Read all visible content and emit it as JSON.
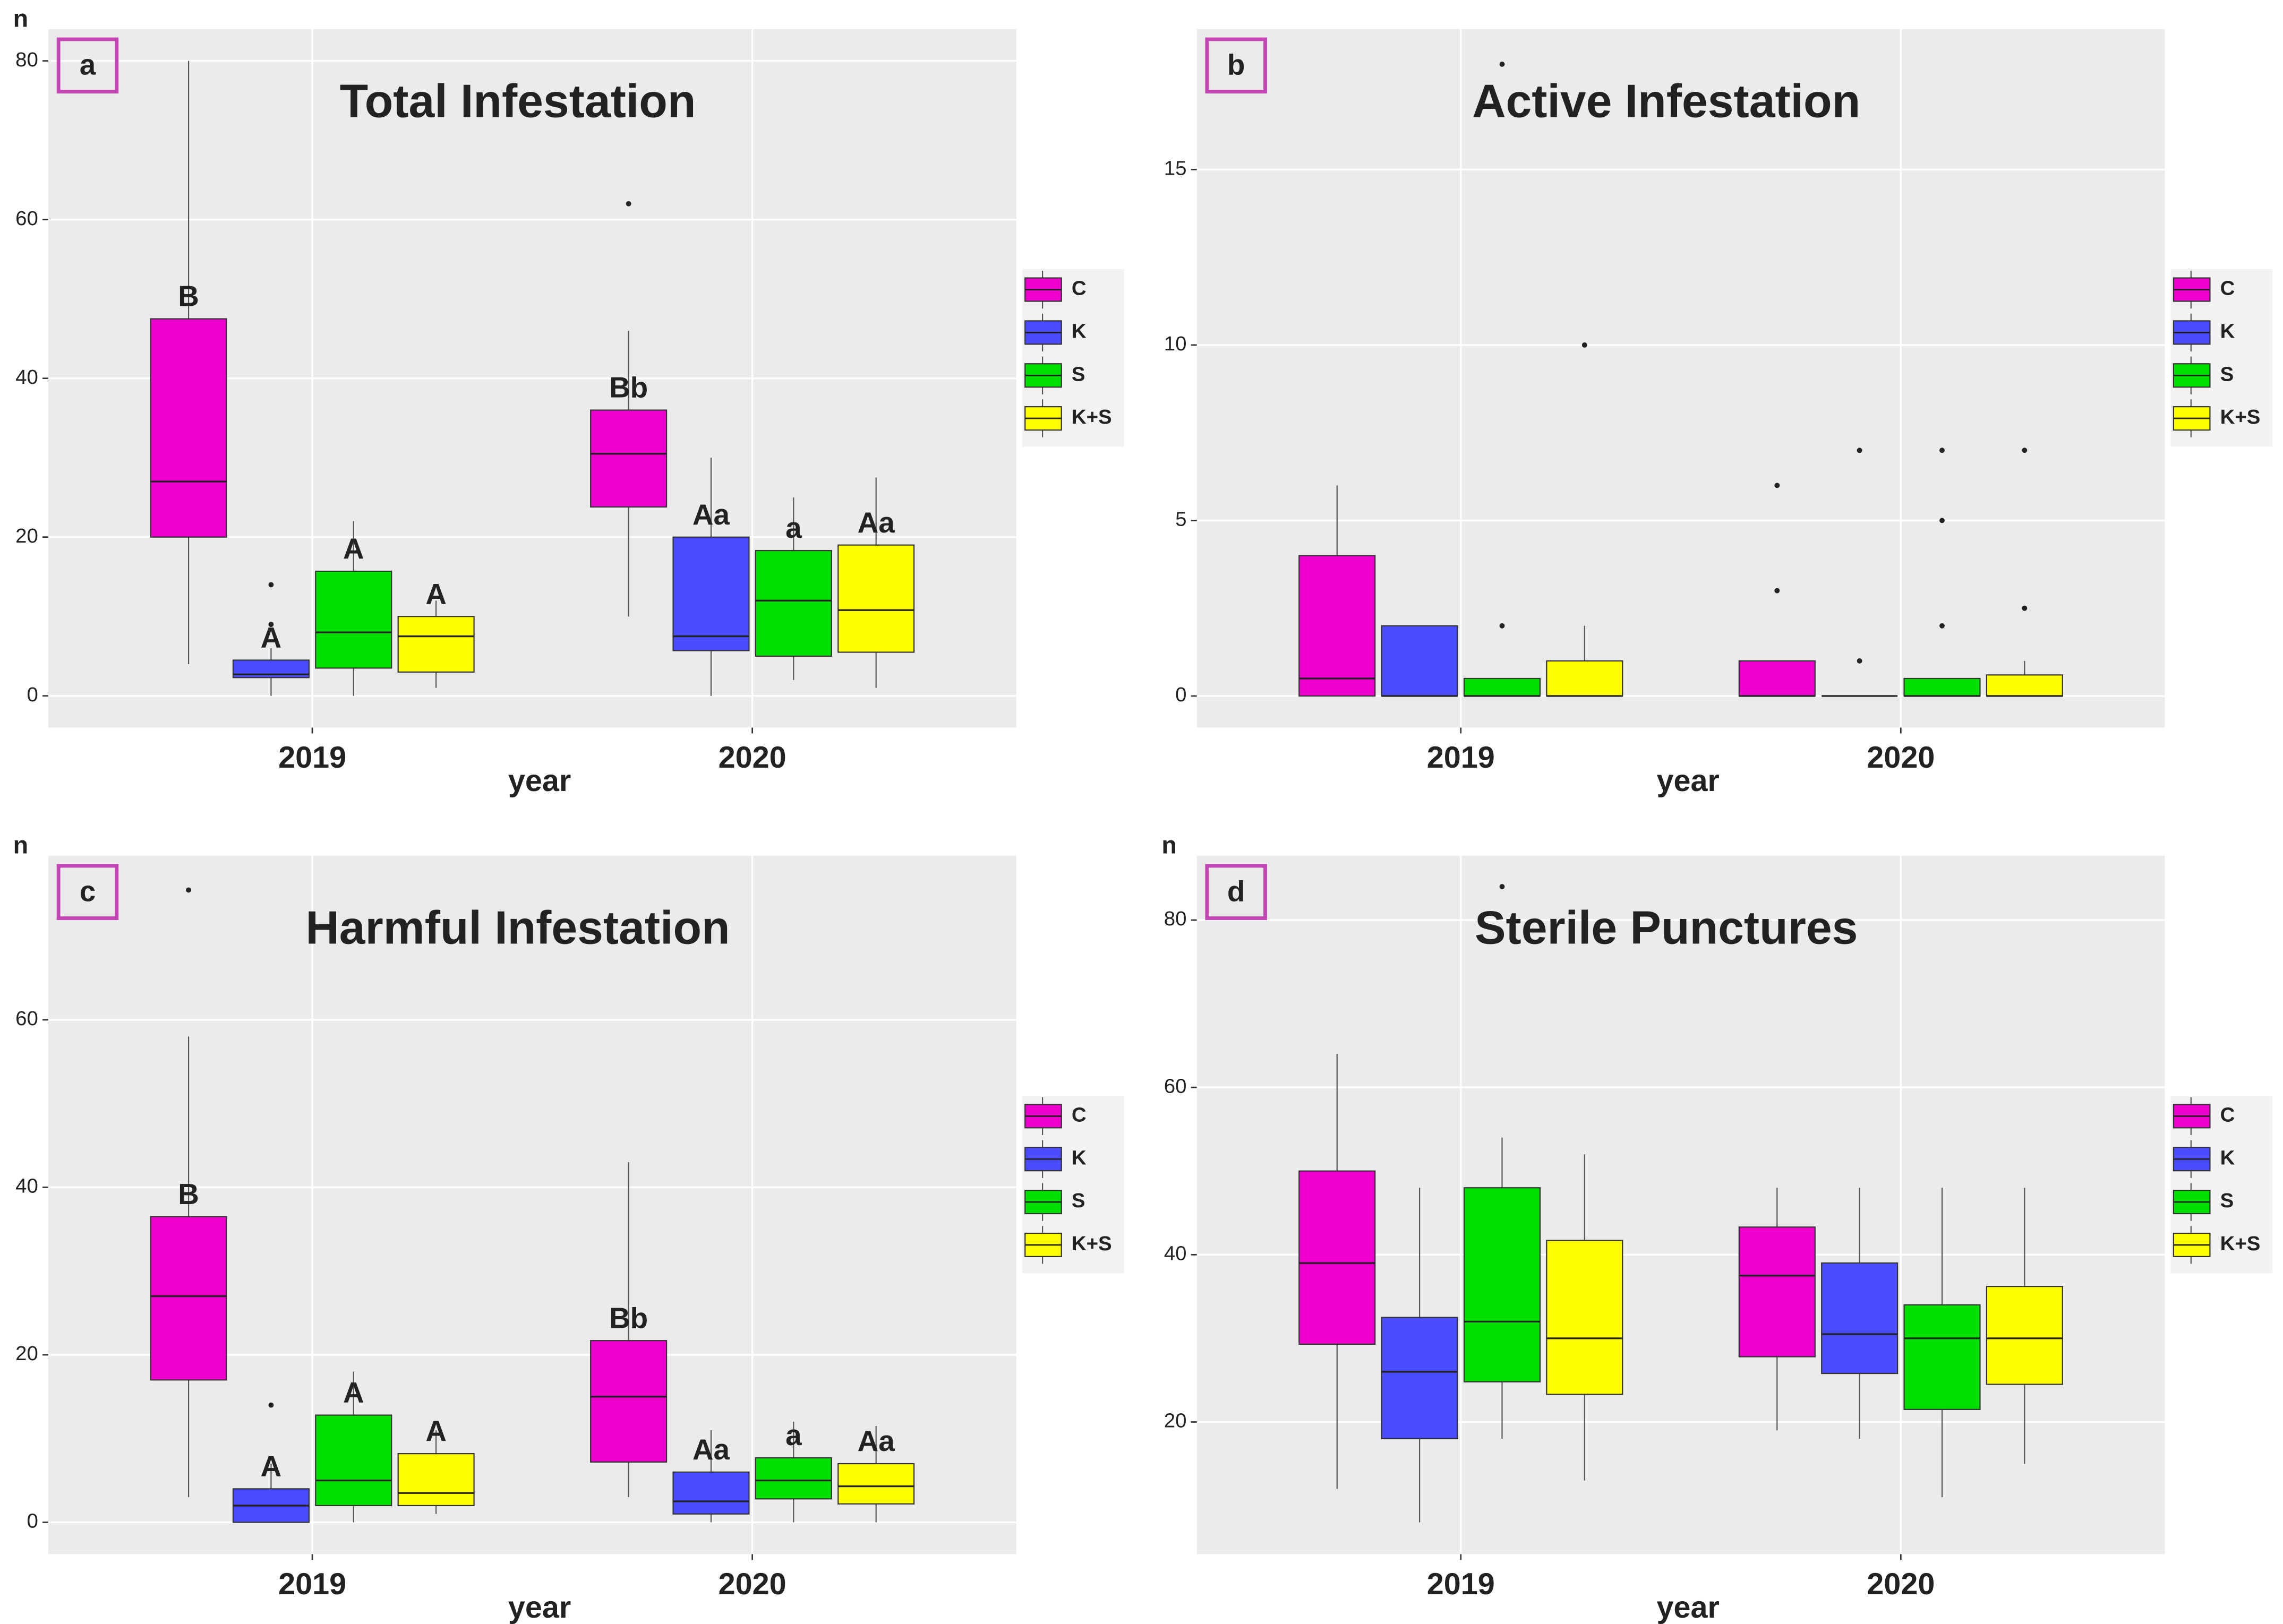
{
  "chart_data": [
    {
      "type": "box",
      "panel_label": "a",
      "title": "Total Infestation",
      "y_label": "n",
      "x_label": "year",
      "categories": [
        "2019",
        "2020"
      ],
      "ylim": [
        -4,
        84
      ],
      "yticks": [
        0,
        20,
        40,
        60,
        80
      ],
      "grid": true,
      "series": [
        {
          "name": "C",
          "color": "#ee00cc",
          "letters": [
            "B",
            "Bb"
          ],
          "boxes": [
            {
              "min": 4,
              "q1": 20,
              "median": 27,
              "q3": 47.5,
              "max": 80,
              "outliers": []
            },
            {
              "min": 10,
              "q1": 23.8,
              "median": 30.5,
              "q3": 36,
              "max": 46,
              "outliers": [
                62
              ]
            }
          ]
        },
        {
          "name": "K",
          "color": "#4b4bff",
          "letters": [
            "A",
            "Aa"
          ],
          "boxes": [
            {
              "min": 0,
              "q1": 2.3,
              "median": 2.7,
              "q3": 4.5,
              "max": 6,
              "outliers": [
                9,
                14
              ]
            },
            {
              "min": 0,
              "q1": 5.7,
              "median": 7.5,
              "q3": 20,
              "max": 30,
              "outliers": []
            }
          ]
        },
        {
          "name": "S",
          "color": "#00e000",
          "letters": [
            "A",
            "a"
          ],
          "boxes": [
            {
              "min": 0,
              "q1": 3.5,
              "median": 8,
              "q3": 15.7,
              "max": 22,
              "outliers": []
            },
            {
              "min": 2,
              "q1": 5,
              "median": 12,
              "q3": 18.3,
              "max": 25,
              "outliers": []
            }
          ]
        },
        {
          "name": "K+S",
          "color": "#ffff00",
          "letters": [
            "A",
            "Aa"
          ],
          "boxes": [
            {
              "min": 1,
              "q1": 3,
              "median": 7.5,
              "q3": 10,
              "max": 12,
              "outliers": []
            },
            {
              "min": 1,
              "q1": 5.5,
              "median": 10.8,
              "q3": 19,
              "max": 27.5,
              "outliers": []
            }
          ]
        }
      ]
    },
    {
      "type": "box",
      "panel_label": "b",
      "title": "Active Infestation",
      "x_label": "year",
      "categories": [
        "2019",
        "2020"
      ],
      "ylim": [
        -0.9,
        19
      ],
      "yticks": [
        0,
        5,
        10,
        15
      ],
      "grid": true,
      "series": [
        {
          "name": "C",
          "color": "#ee00cc",
          "boxes": [
            {
              "min": 0,
              "q1": 0,
              "median": 0.5,
              "q3": 4,
              "max": 6,
              "outliers": []
            },
            {
              "min": 0,
              "q1": 0,
              "median": 0,
              "q3": 1,
              "max": 1,
              "outliers": [
                3,
                6
              ]
            }
          ]
        },
        {
          "name": "K",
          "color": "#4b4bff",
          "boxes": [
            {
              "min": 0,
              "q1": 0,
              "median": 0,
              "q3": 2,
              "max": 2,
              "outliers": []
            },
            {
              "min": 0,
              "q1": 0,
              "median": 0,
              "q3": 0,
              "max": 0,
              "outliers": [
                1,
                7
              ]
            }
          ]
        },
        {
          "name": "S",
          "color": "#00e000",
          "boxes": [
            {
              "min": 0,
              "q1": 0,
              "median": 0,
              "q3": 0.5,
              "max": 0.5,
              "outliers": [
                2,
                18
              ]
            },
            {
              "min": 0,
              "q1": 0,
              "median": 0,
              "q3": 0.5,
              "max": 0.5,
              "outliers": [
                2,
                5,
                7
              ]
            }
          ]
        },
        {
          "name": "K+S",
          "color": "#ffff00",
          "boxes": [
            {
              "min": 0,
              "q1": 0,
              "median": 0,
              "q3": 1,
              "max": 2,
              "outliers": [
                10
              ]
            },
            {
              "min": 0,
              "q1": 0,
              "median": 0,
              "q3": 0.6,
              "max": 1,
              "outliers": [
                2.5,
                7
              ]
            }
          ]
        }
      ]
    },
    {
      "type": "box",
      "panel_label": "c",
      "title": "Harmful Infestation",
      "y_label": "n",
      "x_label": "year",
      "categories": [
        "2019",
        "2020"
      ],
      "ylim": [
        -3.8,
        79.6
      ],
      "yticks": [
        0,
        20,
        40,
        60
      ],
      "grid": true,
      "series": [
        {
          "name": "C",
          "color": "#ee00cc",
          "letters": [
            "B",
            "Bb"
          ],
          "boxes": [
            {
              "min": 3,
              "q1": 17,
              "median": 27,
              "q3": 36.5,
              "max": 58,
              "outliers": [
                75.5
              ]
            },
            {
              "min": 3,
              "q1": 7.2,
              "median": 15,
              "q3": 21.7,
              "max": 43,
              "outliers": []
            }
          ]
        },
        {
          "name": "K",
          "color": "#4b4bff",
          "letters": [
            "A",
            "Aa"
          ],
          "boxes": [
            {
              "min": 0,
              "q1": 0,
              "median": 2,
              "q3": 4,
              "max": 7,
              "outliers": [
                14
              ]
            },
            {
              "min": 0,
              "q1": 1,
              "median": 2.5,
              "q3": 6,
              "max": 11,
              "outliers": []
            }
          ]
        },
        {
          "name": "S",
          "color": "#00e000",
          "letters": [
            "A",
            "a"
          ],
          "boxes": [
            {
              "min": 0,
              "q1": 2,
              "median": 5,
              "q3": 12.8,
              "max": 18,
              "outliers": []
            },
            {
              "min": 0,
              "q1": 2.8,
              "median": 5,
              "q3": 7.7,
              "max": 12,
              "outliers": []
            }
          ]
        },
        {
          "name": "K+S",
          "color": "#ffff00",
          "letters": [
            "A",
            "Aa"
          ],
          "boxes": [
            {
              "min": 1,
              "q1": 2,
              "median": 3.5,
              "q3": 8.2,
              "max": 11,
              "outliers": []
            },
            {
              "min": 0,
              "q1": 2.2,
              "median": 4.3,
              "q3": 7,
              "max": 11.5,
              "outliers": []
            }
          ]
        }
      ]
    },
    {
      "type": "box",
      "panel_label": "d",
      "title": "Sterile Punctures",
      "y_label": "n",
      "x_label": "year",
      "categories": [
        "2019",
        "2020"
      ],
      "ylim": [
        4.2,
        87.7
      ],
      "yticks": [
        20,
        40,
        60,
        80
      ],
      "grid": true,
      "series": [
        {
          "name": "C",
          "color": "#ee00cc",
          "boxes": [
            {
              "min": 12,
              "q1": 29.3,
              "median": 39,
              "q3": 50,
              "max": 64,
              "outliers": []
            },
            {
              "min": 19,
              "q1": 27.8,
              "median": 37.5,
              "q3": 43.3,
              "max": 48,
              "outliers": []
            }
          ]
        },
        {
          "name": "K",
          "color": "#4b4bff",
          "boxes": [
            {
              "min": 8,
              "q1": 18,
              "median": 26,
              "q3": 32.5,
              "max": 48,
              "outliers": []
            },
            {
              "min": 18,
              "q1": 25.8,
              "median": 30.5,
              "q3": 39,
              "max": 48,
              "outliers": []
            }
          ]
        },
        {
          "name": "S",
          "color": "#00e000",
          "boxes": [
            {
              "min": 18,
              "q1": 24.8,
              "median": 32,
              "q3": 48,
              "max": 54,
              "outliers": [
                84
              ]
            },
            {
              "min": 11,
              "q1": 21.5,
              "median": 30,
              "q3": 34,
              "max": 48,
              "outliers": []
            }
          ]
        },
        {
          "name": "K+S",
          "color": "#ffff00",
          "boxes": [
            {
              "min": 13,
              "q1": 23.3,
              "median": 30,
              "q3": 41.7,
              "max": 52,
              "outliers": []
            },
            {
              "min": 15,
              "q1": 24.5,
              "median": 30,
              "q3": 36.2,
              "max": 48,
              "outliers": []
            }
          ]
        }
      ]
    }
  ]
}
